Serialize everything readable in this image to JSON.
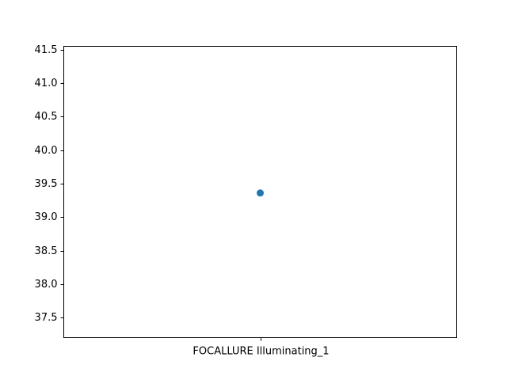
{
  "chart_data": {
    "type": "scatter",
    "title": "",
    "xlabel": "",
    "ylabel": "",
    "categories": [
      "FOCALLURE Illuminating_1"
    ],
    "values": [
      39.36
    ],
    "ylim": [
      37.2,
      41.55
    ],
    "yticks": [
      37.5,
      38.0,
      38.5,
      39.0,
      39.5,
      40.0,
      40.5,
      41.0,
      41.5
    ],
    "ytick_labels": [
      "37.5",
      "38.0",
      "38.5",
      "39.0",
      "39.5",
      "40.0",
      "40.5",
      "41.0",
      "41.5"
    ],
    "grid": false,
    "legend": "none",
    "marker_color": "#1f77b4"
  }
}
